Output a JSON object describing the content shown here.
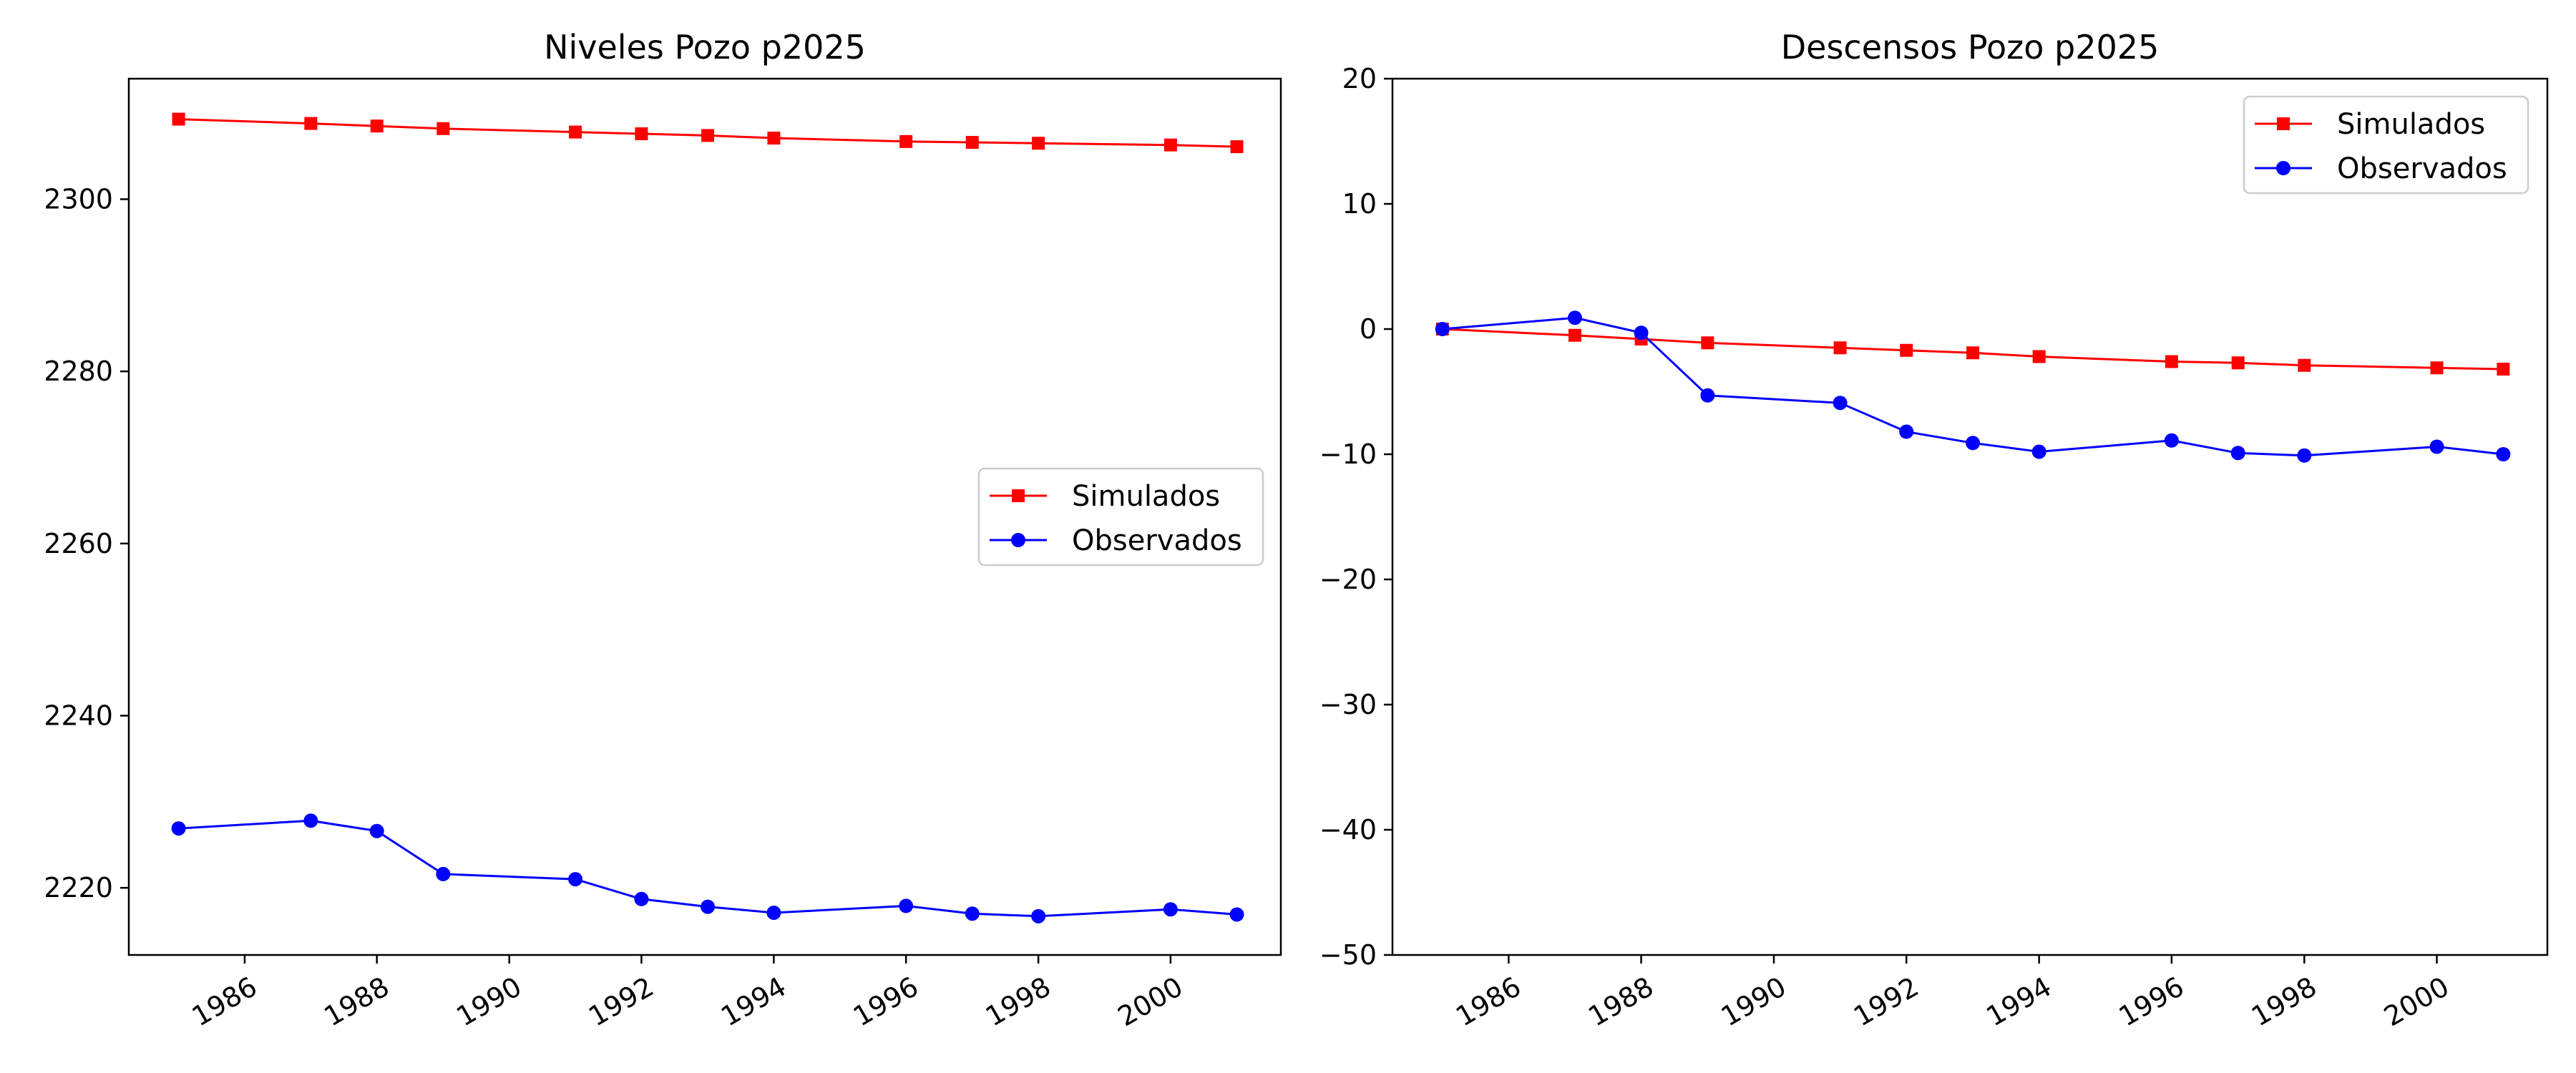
{
  "chart_data": [
    {
      "type": "line",
      "title": "Niveles Pozo p2025",
      "xlabel": "",
      "ylabel": "",
      "x_ticks": [
        "1986",
        "1988",
        "1990",
        "1992",
        "1994",
        "1996",
        "1998",
        "2000"
      ],
      "y_ticks": [
        "2220",
        "2240",
        "2260",
        "2280",
        "2300"
      ],
      "xlim": [
        "1984-04-01",
        "2001-09-01"
      ],
      "ylim": [
        2212.2,
        2314.0
      ],
      "grid": false,
      "legend_position": "center-right",
      "x": [
        "1985-01-01",
        "1987-01-01",
        "1988-01-01",
        "1989-01-01",
        "1991-01-01",
        "1992-01-01",
        "1993-01-01",
        "1994-01-01",
        "1996-01-01",
        "1997-01-01",
        "1998-01-01",
        "2000-01-01",
        "2001-01-01"
      ],
      "series": [
        {
          "name": "Simulados",
          "color": "#ff0000",
          "marker": "square",
          "values": [
            2309.3,
            2308.8,
            2308.5,
            2308.2,
            2307.8,
            2307.6,
            2307.4,
            2307.1,
            2306.7,
            2306.6,
            2306.5,
            2306.3,
            2306.1
          ]
        },
        {
          "name": "Observados",
          "color": "#0000ff",
          "marker": "circle",
          "values": [
            2226.9,
            2227.8,
            2226.6,
            2221.6,
            2221.0,
            2218.7,
            2217.8,
            2217.1,
            2217.9,
            2217.0,
            2216.7,
            2217.5,
            2216.9
          ]
        }
      ]
    },
    {
      "type": "line",
      "title": "Descensos Pozo p2025",
      "xlabel": "",
      "ylabel": "",
      "x_ticks": [
        "1986",
        "1988",
        "1990",
        "1992",
        "1994",
        "1996",
        "1998",
        "2000"
      ],
      "y_ticks": [
        "−50",
        "−40",
        "−30",
        "−20",
        "−10",
        "0",
        "10",
        "20"
      ],
      "xlim": [
        "1984-04-01",
        "2001-09-01"
      ],
      "ylim": [
        -50,
        20
      ],
      "grid": false,
      "legend_position": "top-right",
      "x": [
        "1985-01-01",
        "1987-01-01",
        "1988-01-01",
        "1989-01-01",
        "1991-01-01",
        "1992-01-01",
        "1993-01-01",
        "1994-01-01",
        "1996-01-01",
        "1997-01-01",
        "1998-01-01",
        "2000-01-01",
        "2001-01-01"
      ],
      "series": [
        {
          "name": "Simulados",
          "color": "#ff0000",
          "marker": "square",
          "values": [
            0.0,
            -0.5,
            -0.8,
            -1.1,
            -1.5,
            -1.7,
            -1.9,
            -2.2,
            -2.6,
            -2.7,
            -2.9,
            -3.1,
            -3.2
          ]
        },
        {
          "name": "Observados",
          "color": "#0000ff",
          "marker": "circle",
          "values": [
            0.0,
            0.9,
            -0.3,
            -5.3,
            -5.9,
            -8.2,
            -9.1,
            -9.8,
            -8.9,
            -9.9,
            -10.1,
            -9.4,
            -10.0
          ]
        }
      ]
    }
  ]
}
